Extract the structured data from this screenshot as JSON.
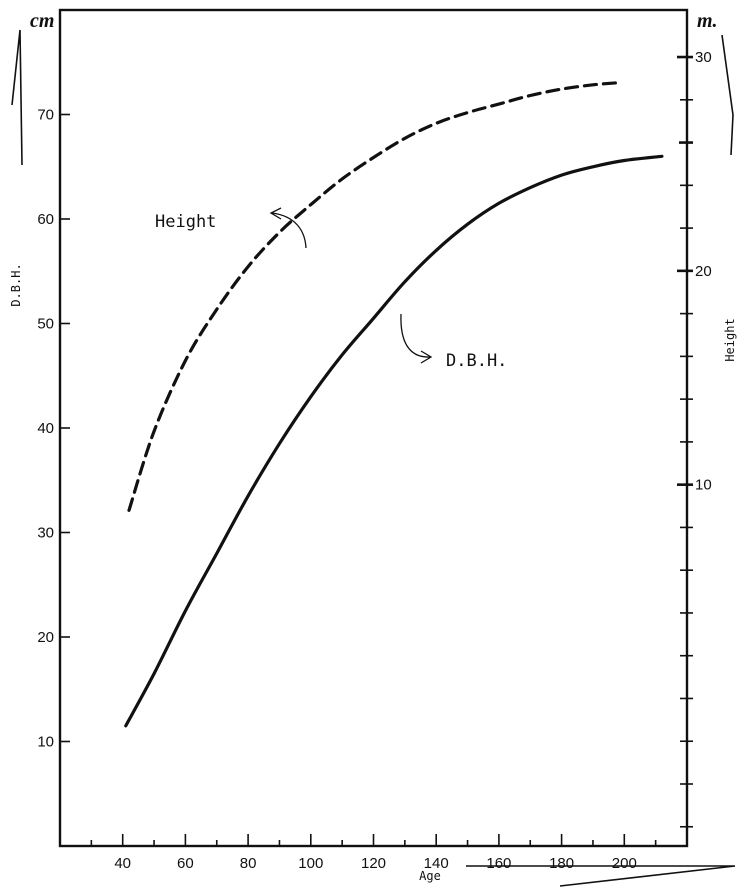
{
  "chart_data": {
    "type": "line",
    "x_label": "Age",
    "x_ticks": [
      40,
      60,
      80,
      100,
      120,
      140,
      160,
      180,
      200
    ],
    "x_range": [
      20,
      220
    ],
    "y_left": {
      "label": "D.B.H.",
      "unit": "cm",
      "range": [
        0,
        80
      ],
      "ticks": [
        10,
        20,
        30,
        40,
        50,
        60,
        70
      ]
    },
    "y_right": {
      "label": "Height",
      "unit": "m.",
      "range": [
        -6.9,
        32.2
      ],
      "ticks": [
        10,
        20,
        30
      ]
    },
    "grid": false,
    "series": [
      {
        "name": "Height",
        "axis": "right",
        "style": "dashed",
        "x": [
          42,
          50,
          60,
          70,
          80,
          90,
          100,
          110,
          120,
          130,
          140,
          150,
          160,
          170,
          180,
          190,
          198
        ],
        "y": [
          8.8,
          12.5,
          15.8,
          18.2,
          20.2,
          21.8,
          23.1,
          24.3,
          25.3,
          26.2,
          26.9,
          27.4,
          27.8,
          28.2,
          28.5,
          28.7,
          28.8
        ]
      },
      {
        "name": "D.B.H.",
        "axis": "left",
        "style": "solid",
        "x": [
          41,
          50,
          60,
          70,
          80,
          90,
          100,
          110,
          120,
          130,
          140,
          150,
          160,
          170,
          180,
          190,
          200,
          212
        ],
        "y": [
          11.5,
          16.5,
          22.5,
          28.0,
          33.5,
          38.5,
          43.0,
          47.0,
          50.5,
          54.0,
          57.0,
          59.5,
          61.5,
          63.0,
          64.2,
          65.0,
          65.6,
          66.0
        ]
      }
    ]
  }
}
